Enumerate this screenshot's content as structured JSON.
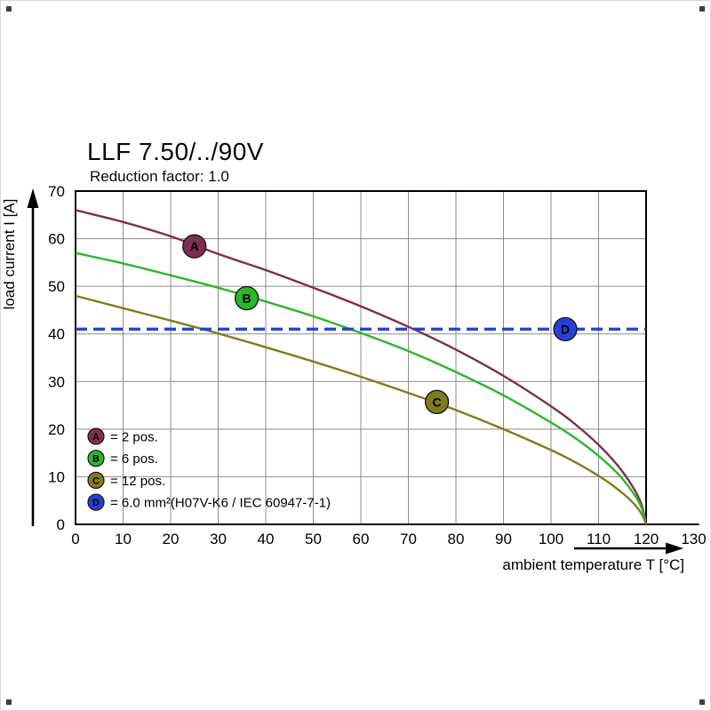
{
  "chart_data": {
    "type": "line",
    "title": "LLF 7.50/../90V",
    "subtitle": "Reduction factor: 1.0",
    "xlabel": "ambient temperature T [°C]",
    "ylabel": "load current I [A]",
    "xlim": [
      0,
      130
    ],
    "ylim": [
      0,
      70
    ],
    "x_plot_max": 120,
    "xticks": [
      0,
      10,
      20,
      30,
      40,
      50,
      60,
      70,
      80,
      90,
      100,
      110,
      120,
      130
    ],
    "yticks": [
      0,
      10,
      20,
      30,
      40,
      50,
      60,
      70
    ],
    "grid": true,
    "grid_color": "#8c8c8c",
    "axis_color": "#000000",
    "legend_position": "inside bottom-left",
    "series": [
      {
        "key": "A",
        "label": "2 pos.",
        "legend_text": "= 2 pos.",
        "color": "#7e2e4e",
        "style": "solid",
        "points": [
          [
            0,
            66
          ],
          [
            10,
            63.5
          ],
          [
            20,
            60.5
          ],
          [
            30,
            56.8
          ],
          [
            40,
            53.4
          ],
          [
            50,
            49.7
          ],
          [
            60,
            45.8
          ],
          [
            70,
            41.5
          ],
          [
            80,
            36.7
          ],
          [
            90,
            31.2
          ],
          [
            100,
            24.8
          ],
          [
            105,
            21.1
          ],
          [
            110,
            16.7
          ],
          [
            114,
            12.4
          ],
          [
            117,
            8.2
          ],
          [
            119,
            4.3
          ],
          [
            120,
            0
          ]
        ],
        "marker": {
          "x": 25,
          "y": 58.4
        }
      },
      {
        "key": "B",
        "label": "6 pos.",
        "legend_text": "= 6 pos.",
        "color": "#2db52d",
        "style": "solid",
        "points": [
          [
            0,
            57
          ],
          [
            10,
            54.8
          ],
          [
            20,
            52.3
          ],
          [
            30,
            49.7
          ],
          [
            40,
            46.8
          ],
          [
            50,
            43.7
          ],
          [
            60,
            40.2
          ],
          [
            70,
            36.4
          ],
          [
            80,
            32
          ],
          [
            90,
            27.1
          ],
          [
            100,
            21.4
          ],
          [
            105,
            18.2
          ],
          [
            110,
            14.4
          ],
          [
            114,
            10.7
          ],
          [
            117,
            7
          ],
          [
            119,
            3.6
          ],
          [
            120,
            0
          ]
        ],
        "marker": {
          "x": 36,
          "y": 47.5
        }
      },
      {
        "key": "C",
        "label": "12 pos.",
        "legend_text": "= 12 pos.",
        "color": "#7d7d1e",
        "style": "solid",
        "points": [
          [
            0,
            48
          ],
          [
            10,
            45.4
          ],
          [
            20,
            42.8
          ],
          [
            30,
            40.1
          ],
          [
            40,
            37.2
          ],
          [
            50,
            34.2
          ],
          [
            60,
            31
          ],
          [
            70,
            27.6
          ],
          [
            80,
            24
          ],
          [
            90,
            20
          ],
          [
            100,
            15.6
          ],
          [
            105,
            13.1
          ],
          [
            110,
            10.2
          ],
          [
            114,
            7.4
          ],
          [
            117,
            4.8
          ],
          [
            119,
            2.3
          ],
          [
            120,
            0
          ]
        ],
        "marker": {
          "x": 76,
          "y": 25.7
        }
      },
      {
        "key": "D",
        "label": "6.0 mm²(H07V-K6 / IEC 60947-7-1)",
        "legend_text": "= 6.0 mm²(H07V-K6 / IEC 60947-7-1)",
        "color": "#2741d6",
        "style": "dashed",
        "y": 41,
        "x_range": [
          0,
          120
        ],
        "marker": {
          "x": 103,
          "y": 41
        }
      }
    ]
  }
}
